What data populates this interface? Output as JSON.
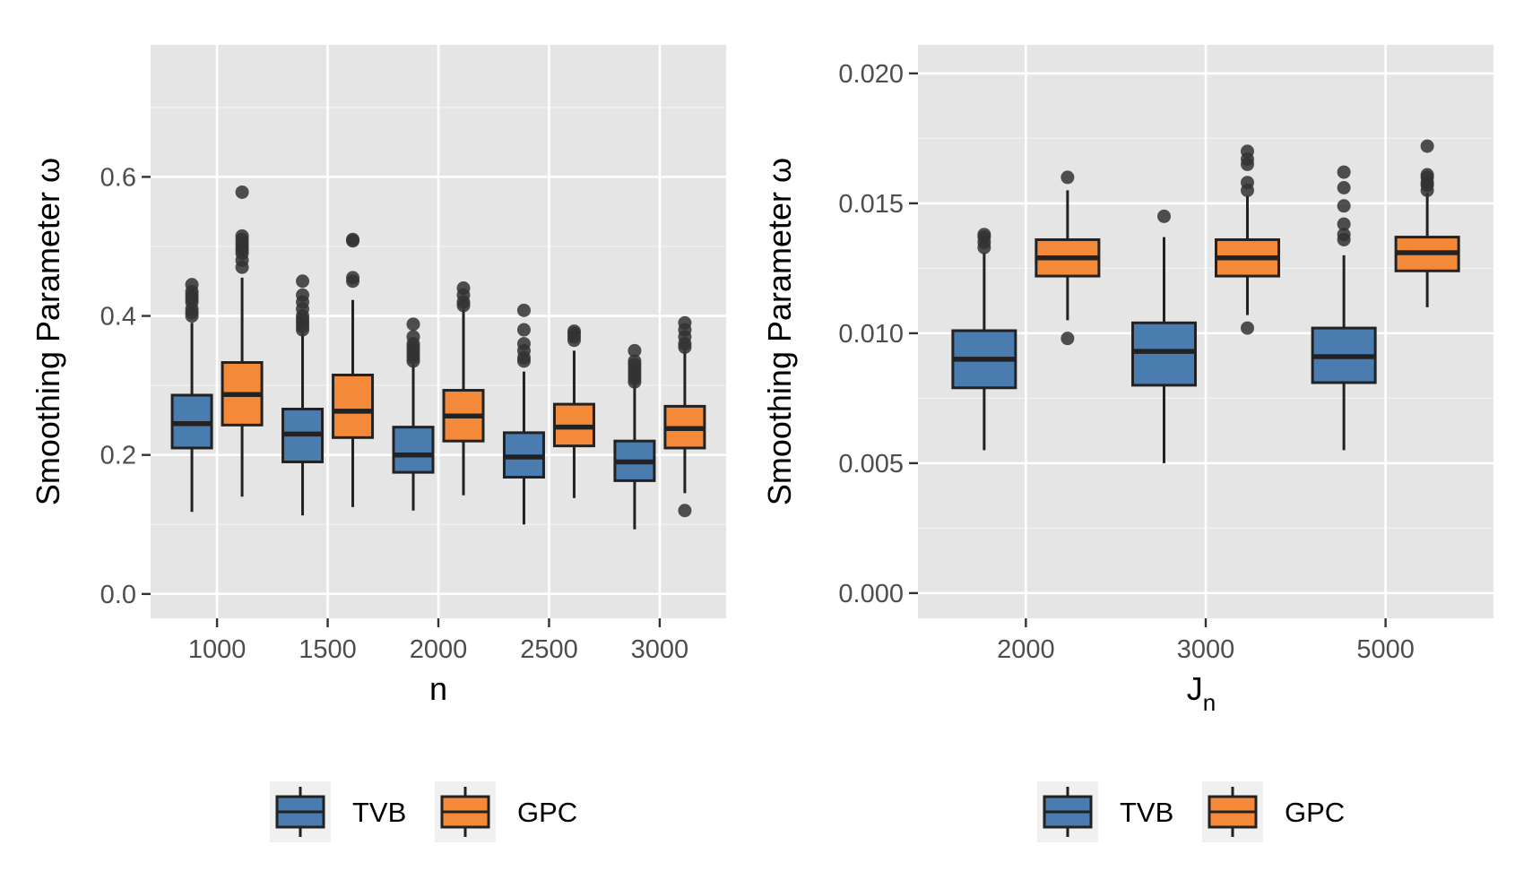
{
  "chart_data": [
    {
      "type": "box",
      "xlabel": "n",
      "ylabel": "Smoothing Parameter ω",
      "ylim": [
        -0.035,
        0.79
      ],
      "yticks": [
        0.0,
        0.2,
        0.4,
        0.6
      ],
      "ytick_labels": [
        "0.0",
        "0.2",
        "0.4",
        "0.6"
      ],
      "categories": [
        "1000",
        "1500",
        "2000",
        "2500",
        "3000"
      ],
      "grid": true,
      "series": [
        {
          "name": "TVB",
          "color": "#4a7cb0",
          "boxes": [
            {
              "whisker_low": 0.118,
              "q1": 0.21,
              "median": 0.245,
              "q3": 0.286,
              "whisker_high": 0.39,
              "outliers": [
                0.4,
                0.405,
                0.41,
                0.42,
                0.425,
                0.43,
                0.435,
                0.445
              ]
            },
            {
              "whisker_low": 0.113,
              "q1": 0.19,
              "median": 0.23,
              "q3": 0.266,
              "whisker_high": 0.375,
              "outliers": [
                0.38,
                0.385,
                0.39,
                0.395,
                0.4,
                0.41,
                0.42,
                0.43,
                0.45
              ]
            },
            {
              "whisker_low": 0.12,
              "q1": 0.175,
              "median": 0.2,
              "q3": 0.24,
              "whisker_high": 0.33,
              "outliers": [
                0.335,
                0.34,
                0.345,
                0.35,
                0.355,
                0.36,
                0.37,
                0.388
              ]
            },
            {
              "whisker_low": 0.1,
              "q1": 0.168,
              "median": 0.197,
              "q3": 0.232,
              "whisker_high": 0.32,
              "outliers": [
                0.335,
                0.34,
                0.35,
                0.36,
                0.38,
                0.408
              ]
            },
            {
              "whisker_low": 0.093,
              "q1": 0.163,
              "median": 0.19,
              "q3": 0.22,
              "whisker_high": 0.305,
              "outliers": [
                0.305,
                0.31,
                0.315,
                0.32,
                0.325,
                0.33,
                0.335,
                0.35
              ]
            }
          ]
        },
        {
          "name": "GPC",
          "color": "#f5893a",
          "boxes": [
            {
              "whisker_low": 0.14,
              "q1": 0.243,
              "median": 0.287,
              "q3": 0.333,
              "whisker_high": 0.455,
              "outliers": [
                0.47,
                0.48,
                0.49,
                0.495,
                0.5,
                0.505,
                0.51,
                0.515,
                0.578
              ]
            },
            {
              "whisker_low": 0.125,
              "q1": 0.225,
              "median": 0.263,
              "q3": 0.315,
              "whisker_high": 0.423,
              "outliers": [
                0.45,
                0.455,
                0.508,
                0.51
              ]
            },
            {
              "whisker_low": 0.142,
              "q1": 0.22,
              "median": 0.256,
              "q3": 0.293,
              "whisker_high": 0.41,
              "outliers": [
                0.415,
                0.42,
                0.43,
                0.44
              ]
            },
            {
              "whisker_low": 0.138,
              "q1": 0.213,
              "median": 0.24,
              "q3": 0.273,
              "whisker_high": 0.35,
              "outliers": [
                0.365,
                0.37,
                0.375,
                0.378
              ]
            },
            {
              "whisker_low": 0.145,
              "q1": 0.21,
              "median": 0.238,
              "q3": 0.27,
              "whisker_high": 0.35,
              "outliers": [
                0.12,
                0.355,
                0.36,
                0.37,
                0.38,
                0.39
              ]
            }
          ]
        }
      ],
      "legend": {
        "position": "bottom",
        "entries": [
          "TVB",
          "GPC"
        ]
      }
    },
    {
      "type": "box",
      "xlabel": "J",
      "xlabel_subscript": "n",
      "ylabel": "Smoothing Parameter ω",
      "ylim": [
        -0.00097,
        0.0211
      ],
      "yticks": [
        0.0,
        0.005,
        0.01,
        0.015,
        0.02
      ],
      "ytick_labels": [
        "0.000",
        "0.005",
        "0.010",
        "0.015",
        "0.020"
      ],
      "categories": [
        "2000",
        "3000",
        "5000"
      ],
      "grid": true,
      "series": [
        {
          "name": "TVB",
          "color": "#4a7cb0",
          "boxes": [
            {
              "whisker_low": 0.0055,
              "q1": 0.0079,
              "median": 0.009,
              "q3": 0.0101,
              "whisker_high": 0.0131,
              "outliers": [
                0.0133,
                0.0135,
                0.0137,
                0.0138
              ]
            },
            {
              "whisker_low": 0.005,
              "q1": 0.008,
              "median": 0.0093,
              "q3": 0.0104,
              "whisker_high": 0.0137,
              "outliers": [
                0.0145
              ]
            },
            {
              "whisker_low": 0.0055,
              "q1": 0.0081,
              "median": 0.0091,
              "q3": 0.0102,
              "whisker_high": 0.013,
              "outliers": [
                0.0136,
                0.0138,
                0.0142,
                0.0149,
                0.0156,
                0.0162
              ]
            }
          ]
        },
        {
          "name": "GPC",
          "color": "#f5893a",
          "boxes": [
            {
              "whisker_low": 0.0105,
              "q1": 0.0122,
              "median": 0.0129,
              "q3": 0.0136,
              "whisker_high": 0.0155,
              "outliers": [
                0.0098,
                0.016
              ]
            },
            {
              "whisker_low": 0.0107,
              "q1": 0.0122,
              "median": 0.0129,
              "q3": 0.0136,
              "whisker_high": 0.0153,
              "outliers": [
                0.0102,
                0.0155,
                0.0158,
                0.0165,
                0.0167,
                0.017
              ]
            },
            {
              "whisker_low": 0.011,
              "q1": 0.0124,
              "median": 0.0131,
              "q3": 0.0137,
              "whisker_high": 0.0154,
              "outliers": [
                0.0155,
                0.0157,
                0.0158,
                0.016,
                0.0161,
                0.0172
              ]
            }
          ]
        }
      ],
      "legend": {
        "position": "bottom",
        "entries": [
          "TVB",
          "GPC"
        ]
      }
    }
  ]
}
